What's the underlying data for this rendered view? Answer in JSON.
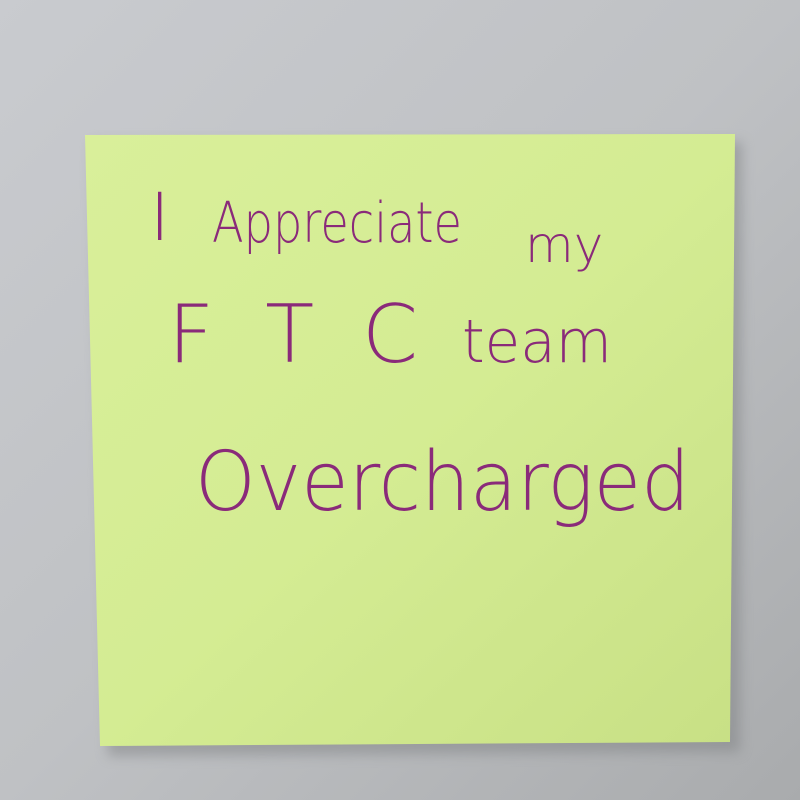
{
  "note": {
    "lines": [
      {
        "words": [
          "I",
          "Appreciate",
          "my"
        ]
      },
      {
        "words": [
          "FTC",
          "team"
        ]
      },
      {
        "words": [
          "Overcharged"
        ]
      }
    ]
  }
}
